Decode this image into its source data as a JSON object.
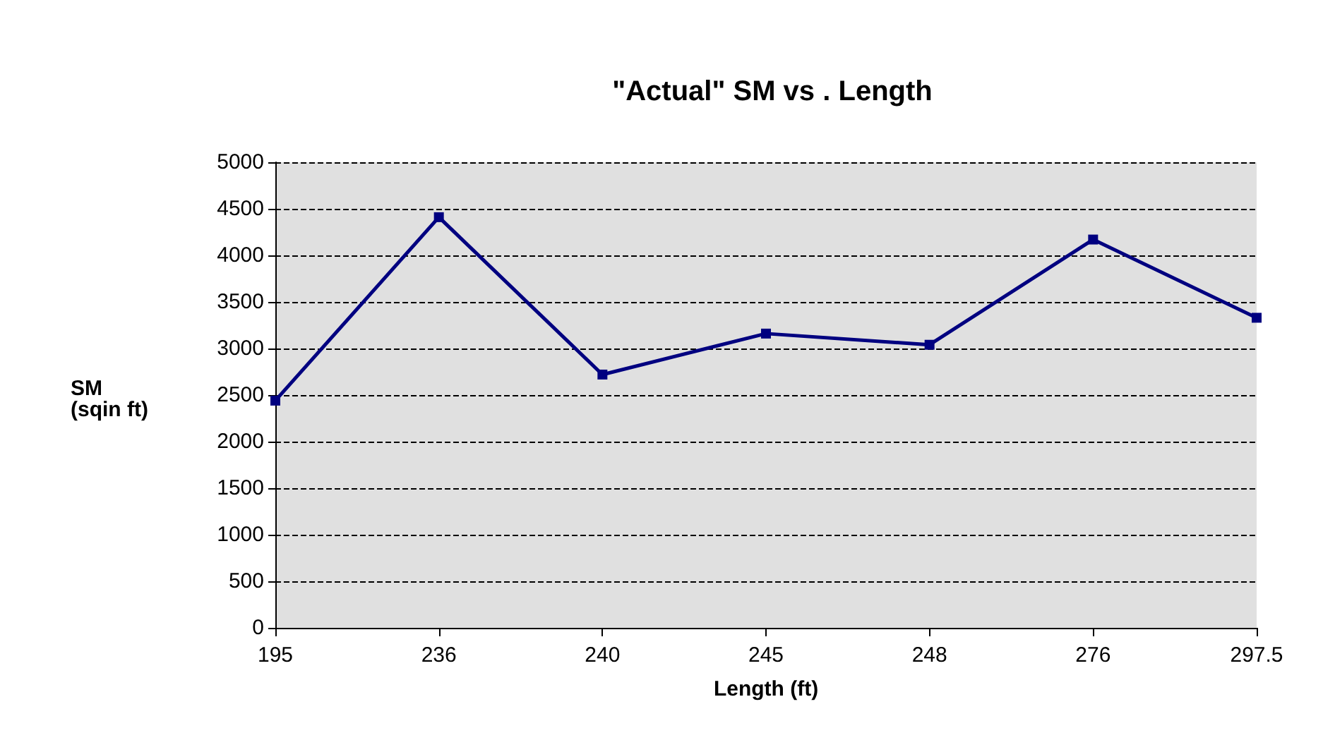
{
  "chart_data": {
    "type": "line",
    "title": "\"Actual\" SM vs . Length",
    "xlabel": "Length (ft)",
    "ylabel": "SM\n(sqin ft)",
    "categories": [
      "195",
      "236",
      "240",
      "245",
      "248",
      "276",
      "297.5"
    ],
    "series": [
      {
        "color": "#000080",
        "values": [
          2440,
          4410,
          2720,
          3160,
          3040,
          4170,
          3330
        ]
      }
    ],
    "ylim": [
      0,
      5000
    ],
    "yticks": [
      0,
      500,
      1000,
      1500,
      2000,
      2500,
      3000,
      3500,
      4000,
      4500,
      5000
    ],
    "grid": "y",
    "marker": "square",
    "line_style": "solid"
  }
}
